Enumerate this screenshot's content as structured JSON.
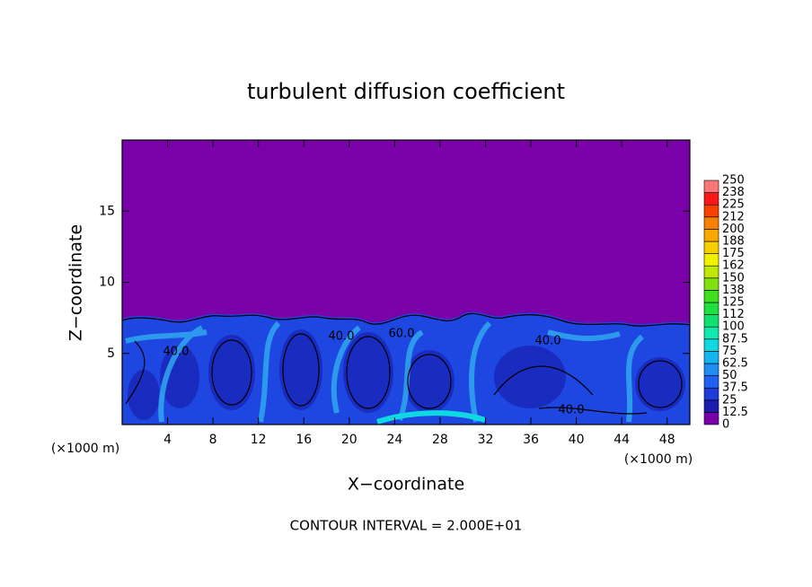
{
  "chart_data": {
    "type": "contour",
    "title": "turbulent diffusion coefficient",
    "x_label": "X−coordinate",
    "y_label": "Z−coordinate",
    "x_unit": "(×1000 m)",
    "x_unit_right": "(×1000 m)",
    "note": "CONTOUR INTERVAL = 2.000E+01",
    "xlim": [
      0,
      50
    ],
    "xticks": [
      4,
      8,
      12,
      16,
      20,
      24,
      28,
      32,
      36,
      40,
      44,
      48
    ],
    "ylim": [
      0,
      20
    ],
    "yticks": [
      5,
      10,
      15
    ],
    "contour_labels": [
      "40.0",
      "40.0",
      "60.0",
      "40.0",
      "40.0"
    ],
    "colorbar": {
      "levels": [
        0,
        12.5,
        25,
        37.5,
        50,
        62.5,
        75,
        87.5,
        100,
        112,
        125,
        138,
        150,
        162,
        175,
        188,
        200,
        212,
        225,
        238,
        250
      ],
      "colors": [
        "#7a00a8",
        "#1c1caf",
        "#1e3cd8",
        "#2060f0",
        "#1e8cf0",
        "#14b4f0",
        "#10d8e0",
        "#10e8b0",
        "#10e070",
        "#20e040",
        "#40e020",
        "#80e010",
        "#c0e800",
        "#f0f000",
        "#f8d000",
        "#f8a800",
        "#f88000",
        "#f84000",
        "#f81818",
        "#f87878"
      ]
    }
  }
}
